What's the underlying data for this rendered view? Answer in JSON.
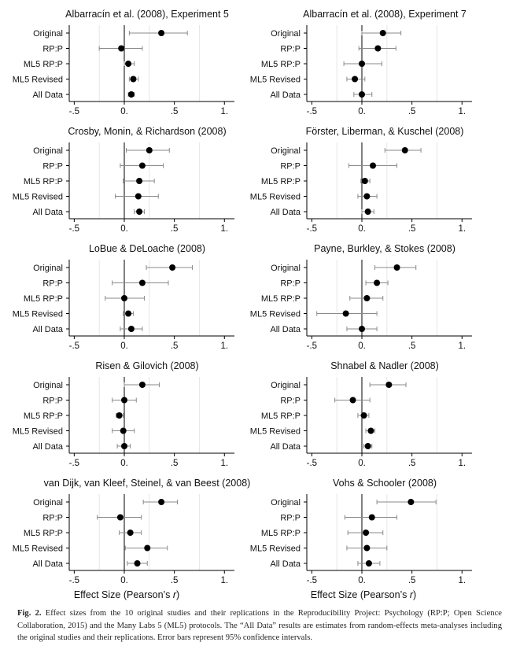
{
  "figure": {
    "xlabel": "Effect Size (Pearson’s r)",
    "xlabel_plain": "Effect Size (Pearson’s ",
    "xlabel_var": "r",
    "xlabel_close": ")",
    "caption_label": "Fig. 2.",
    "caption_text": "Effect sizes from the 10 original studies and their replications in the Reproducibility Project: Psychology (RP:P; Open Science Collaboration, 2015) and the Many Labs 5 (ML5) protocols. The “All Data” results are estimates from random-effects meta-analyses including the original studies and their replications. Error bars represent 95% confidence intervals."
  },
  "chart_data": [
    {
      "type": "scatter",
      "title": "Albarracín et al. (2008), Experiment 5",
      "categories": [
        "Original",
        "RP:P",
        "ML5 RP:P",
        "ML5 Revised",
        "All Data"
      ],
      "x": [
        0.37,
        -0.03,
        0.04,
        0.09,
        0.07
      ],
      "ci_low": [
        0.05,
        -0.25,
        0.0,
        0.05,
        0.04
      ],
      "ci_high": [
        0.63,
        0.18,
        0.1,
        0.14,
        0.1
      ],
      "xlim": [
        -0.55,
        1.1
      ],
      "xticks": [
        -0.5,
        0,
        0.5,
        1
      ],
      "xtick_labels": [
        "-.5",
        "0.",
        ".5",
        "1."
      ],
      "reference_x": 0,
      "gridlines": [
        -0.25,
        0.25,
        0.75
      ]
    },
    {
      "type": "scatter",
      "title": "Albarracín et al. (2008), Experiment 7",
      "categories": [
        "Original",
        "RP:P",
        "ML5 RP:P",
        "ML5 Revised",
        "All Data"
      ],
      "x": [
        0.21,
        0.16,
        0.0,
        -0.07,
        0.0
      ],
      "ci_low": [
        0.0,
        -0.03,
        -0.18,
        -0.15,
        -0.08
      ],
      "ci_high": [
        0.39,
        0.34,
        0.2,
        0.03,
        0.1
      ],
      "xlim": [
        -0.55,
        1.1
      ],
      "xticks": [
        -0.5,
        0,
        0.5,
        1
      ],
      "xtick_labels": [
        "-.5",
        "0.",
        ".5",
        "1."
      ],
      "reference_x": 0,
      "gridlines": [
        -0.25,
        0.25,
        0.75
      ]
    },
    {
      "type": "scatter",
      "title": "Crosby, Monin, & Richardson (2008)",
      "categories": [
        "Original",
        "RP:P",
        "ML5 RP:P",
        "ML5 Revised",
        "All Data"
      ],
      "x": [
        0.25,
        0.18,
        0.15,
        0.14,
        0.15
      ],
      "ci_low": [
        0.02,
        -0.04,
        -0.01,
        -0.09,
        0.1
      ],
      "ci_high": [
        0.45,
        0.39,
        0.3,
        0.34,
        0.2
      ],
      "xlim": [
        -0.55,
        1.1
      ],
      "xticks": [
        -0.5,
        0,
        0.5,
        1
      ],
      "xtick_labels": [
        "-.5",
        "0.",
        ".5",
        "1."
      ],
      "reference_x": 0,
      "gridlines": [
        -0.25,
        0.25,
        0.75
      ]
    },
    {
      "type": "scatter",
      "title": "Förster, Liberman, & Kuschel (2008)",
      "categories": [
        "Original",
        "RP:P",
        "ML5 RP:P",
        "ML5 Revised",
        "All Data"
      ],
      "x": [
        0.43,
        0.11,
        0.03,
        0.05,
        0.06
      ],
      "ci_low": [
        0.23,
        -0.13,
        -0.01,
        -0.04,
        0.0
      ],
      "ci_high": [
        0.59,
        0.35,
        0.08,
        0.15,
        0.12
      ],
      "xlim": [
        -0.55,
        1.1
      ],
      "xticks": [
        -0.5,
        0,
        0.5,
        1
      ],
      "xtick_labels": [
        "-.5",
        "0.",
        ".5",
        "1."
      ],
      "reference_x": 0,
      "gridlines": [
        -0.25,
        0.25,
        0.75
      ]
    },
    {
      "type": "scatter",
      "title": "LoBue & DeLoache (2008)",
      "categories": [
        "Original",
        "RP:P",
        "ML5 RP:P",
        "ML5 Revised",
        "All Data"
      ],
      "x": [
        0.48,
        0.18,
        0.0,
        0.04,
        0.07
      ],
      "ci_low": [
        0.22,
        -0.12,
        -0.19,
        -0.01,
        -0.04
      ],
      "ci_high": [
        0.68,
        0.44,
        0.2,
        0.09,
        0.18
      ],
      "xlim": [
        -0.55,
        1.1
      ],
      "xticks": [
        -0.5,
        0,
        0.5,
        1
      ],
      "xtick_labels": [
        "-.5",
        "0.",
        ".5",
        "1."
      ],
      "reference_x": 0,
      "gridlines": [
        -0.25,
        0.25,
        0.75
      ]
    },
    {
      "type": "scatter",
      "title": "Payne, Burkley, & Stokes (2008)",
      "categories": [
        "Original",
        "RP:P",
        "ML5 RP:P",
        "ML5 Revised",
        "All Data"
      ],
      "x": [
        0.35,
        0.15,
        0.05,
        -0.16,
        0.0
      ],
      "ci_low": [
        0.13,
        0.04,
        -0.12,
        -0.45,
        -0.15
      ],
      "ci_high": [
        0.54,
        0.26,
        0.21,
        0.15,
        0.15
      ],
      "xlim": [
        -0.55,
        1.1
      ],
      "xticks": [
        -0.5,
        0,
        0.5,
        1
      ],
      "xtick_labels": [
        "-.5",
        "0.",
        ".5",
        "1."
      ],
      "reference_x": 0,
      "gridlines": [
        -0.25,
        0.25,
        0.75
      ]
    },
    {
      "type": "scatter",
      "title": "Risen & Gilovich (2008)",
      "categories": [
        "Original",
        "RP:P",
        "ML5 RP:P",
        "ML5 Revised",
        "All Data"
      ],
      "x": [
        0.18,
        0.0,
        -0.05,
        -0.01,
        0.0
      ],
      "ci_low": [
        0.0,
        -0.12,
        -0.08,
        -0.12,
        -0.07
      ],
      "ci_high": [
        0.35,
        0.12,
        -0.01,
        0.1,
        0.06
      ],
      "xlim": [
        -0.55,
        1.1
      ],
      "xticks": [
        -0.5,
        0,
        0.5,
        1
      ],
      "xtick_labels": [
        "-.5",
        "0.",
        ".5",
        "1."
      ],
      "reference_x": 0,
      "gridlines": [
        -0.25,
        0.25,
        0.75
      ]
    },
    {
      "type": "scatter",
      "title": "Shnabel & Nadler (2008)",
      "categories": [
        "Original",
        "RP:P",
        "ML5 RP:P",
        "ML5 Revised",
        "All Data"
      ],
      "x": [
        0.27,
        -0.09,
        0.02,
        0.09,
        0.06
      ],
      "ci_low": [
        0.08,
        -0.27,
        -0.04,
        0.04,
        0.02
      ],
      "ci_high": [
        0.44,
        0.08,
        0.07,
        0.13,
        0.1
      ],
      "xlim": [
        -0.55,
        1.1
      ],
      "xticks": [
        -0.5,
        0,
        0.5,
        1
      ],
      "xtick_labels": [
        "-.5",
        "0.",
        ".5",
        "1."
      ],
      "reference_x": 0,
      "gridlines": [
        -0.25,
        0.25,
        0.75
      ]
    },
    {
      "type": "scatter",
      "title": "van Dijk, van Kleef, Steinel, & van Beest (2008)",
      "categories": [
        "Original",
        "RP:P",
        "ML5 RP:P",
        "ML5 Revised",
        "All Data"
      ],
      "x": [
        0.37,
        -0.04,
        0.06,
        0.23,
        0.13
      ],
      "ci_low": [
        0.19,
        -0.27,
        -0.05,
        0.01,
        0.03
      ],
      "ci_high": [
        0.53,
        0.17,
        0.17,
        0.43,
        0.23
      ],
      "xlim": [
        -0.55,
        1.1
      ],
      "xticks": [
        -0.5,
        0,
        0.5,
        1
      ],
      "xtick_labels": [
        "-.5",
        "0.",
        ".5",
        "1."
      ],
      "reference_x": 0,
      "gridlines": [
        -0.25,
        0.25,
        0.75
      ]
    },
    {
      "type": "scatter",
      "title": "Vohs & Schooler (2008)",
      "categories": [
        "Original",
        "RP:P",
        "ML5 RP:P",
        "ML5 Revised",
        "All Data"
      ],
      "x": [
        0.49,
        0.1,
        0.04,
        0.05,
        0.07
      ],
      "ci_low": [
        0.15,
        -0.17,
        -0.14,
        -0.15,
        -0.04
      ],
      "ci_high": [
        0.74,
        0.35,
        0.21,
        0.25,
        0.18
      ],
      "xlim": [
        -0.55,
        1.1
      ],
      "xticks": [
        -0.5,
        0,
        0.5,
        1
      ],
      "xtick_labels": [
        "-.5",
        "0.",
        ".5",
        "1."
      ],
      "reference_x": 0,
      "gridlines": [
        -0.25,
        0.25,
        0.75
      ]
    }
  ],
  "colors": {
    "point": "#000000",
    "error_bar": "#8a8a8a",
    "gridline": "#e6e6e6",
    "axis": "#000000"
  }
}
